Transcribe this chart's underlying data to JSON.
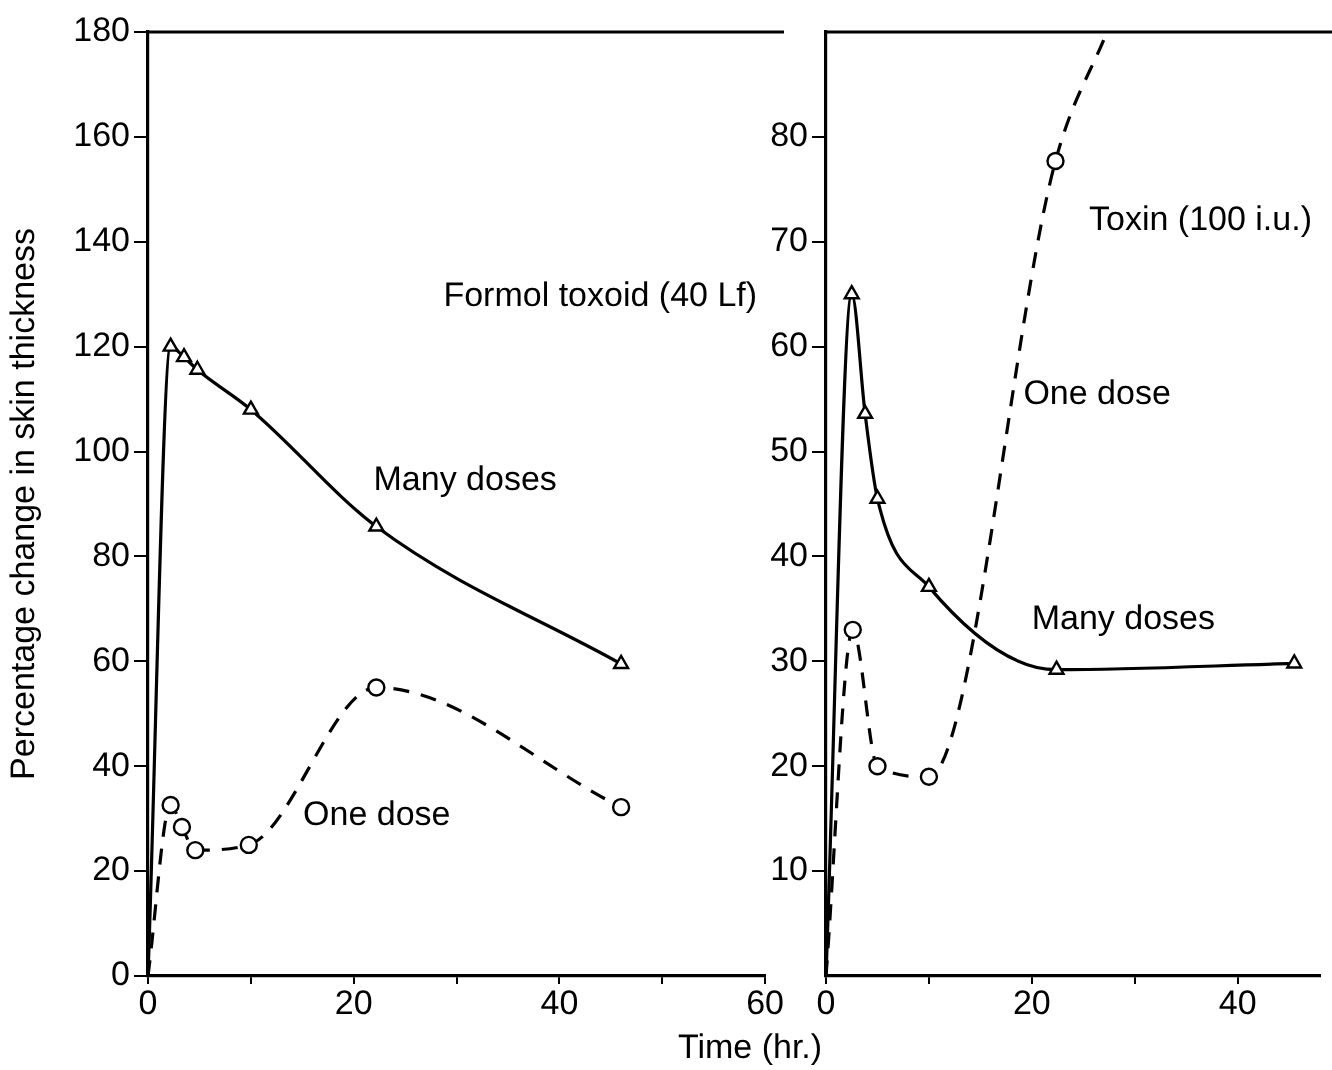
{
  "chart_data": [
    {
      "type": "line",
      "title": "Formol toxoid (40 Lf)",
      "xlabel": "Time (hr.)",
      "ylabel": "Percentage change in skin thickness",
      "xlim": [
        0,
        60
      ],
      "ylim": [
        0,
        180
      ],
      "xticks": [
        0,
        {
          "value": 10,
          "label": null
        },
        20,
        {
          "value": 30,
          "label": null
        },
        40,
        {
          "value": 50,
          "label": null
        },
        60
      ],
      "yticks": [
        0,
        20,
        40,
        60,
        80,
        100,
        120,
        140,
        160,
        180
      ],
      "grid": false,
      "legend": false,
      "series": [
        {
          "name": "Many doses",
          "color": "#000000",
          "marker": "triangle",
          "line_style": "solid",
          "x": [
            0,
            2.2,
            3.5,
            4.8,
            10,
            22.2,
            46
          ],
          "values": [
            0,
            120,
            118,
            115.6,
            108,
            85.7,
            59.5
          ]
        },
        {
          "name": "One dose",
          "color": "#000000",
          "marker": "circle",
          "line_style": "dashed",
          "x": [
            0,
            2.2,
            3.3,
            4.6,
            9.8,
            22.2,
            46
          ],
          "values": [
            0,
            32.6,
            28.4,
            24,
            25,
            55,
            32.2
          ]
        }
      ]
    },
    {
      "type": "line",
      "title": "Toxin (100 i.u.)",
      "xlim": [
        0,
        48
      ],
      "ylim": [
        0,
        90
      ],
      "xticks": [
        0,
        {
          "value": 10,
          "label": null
        },
        20,
        {
          "value": 30,
          "label": null
        },
        40
      ],
      "yticks": [
        10,
        20,
        30,
        40,
        50,
        60,
        70,
        80
      ],
      "grid": false,
      "legend": false,
      "series": [
        {
          "name": "Many doses",
          "color": "#000000",
          "marker": "triangle",
          "line_style": "solid",
          "x": [
            0,
            2.5,
            3.8,
            5,
            10,
            22.4,
            45.5
          ],
          "values": [
            0,
            65,
            53.6,
            45.5,
            37.1,
            29.2,
            29.8
          ]
        },
        {
          "name": "One dose",
          "color": "#000000",
          "marker": "circle",
          "line_style": "dashed",
          "x": [
            0,
            2.6,
            5,
            10,
            22.3,
            27.3
          ],
          "values": [
            0,
            33,
            20,
            19,
            77.7,
            90
          ]
        }
      ]
    }
  ]
}
